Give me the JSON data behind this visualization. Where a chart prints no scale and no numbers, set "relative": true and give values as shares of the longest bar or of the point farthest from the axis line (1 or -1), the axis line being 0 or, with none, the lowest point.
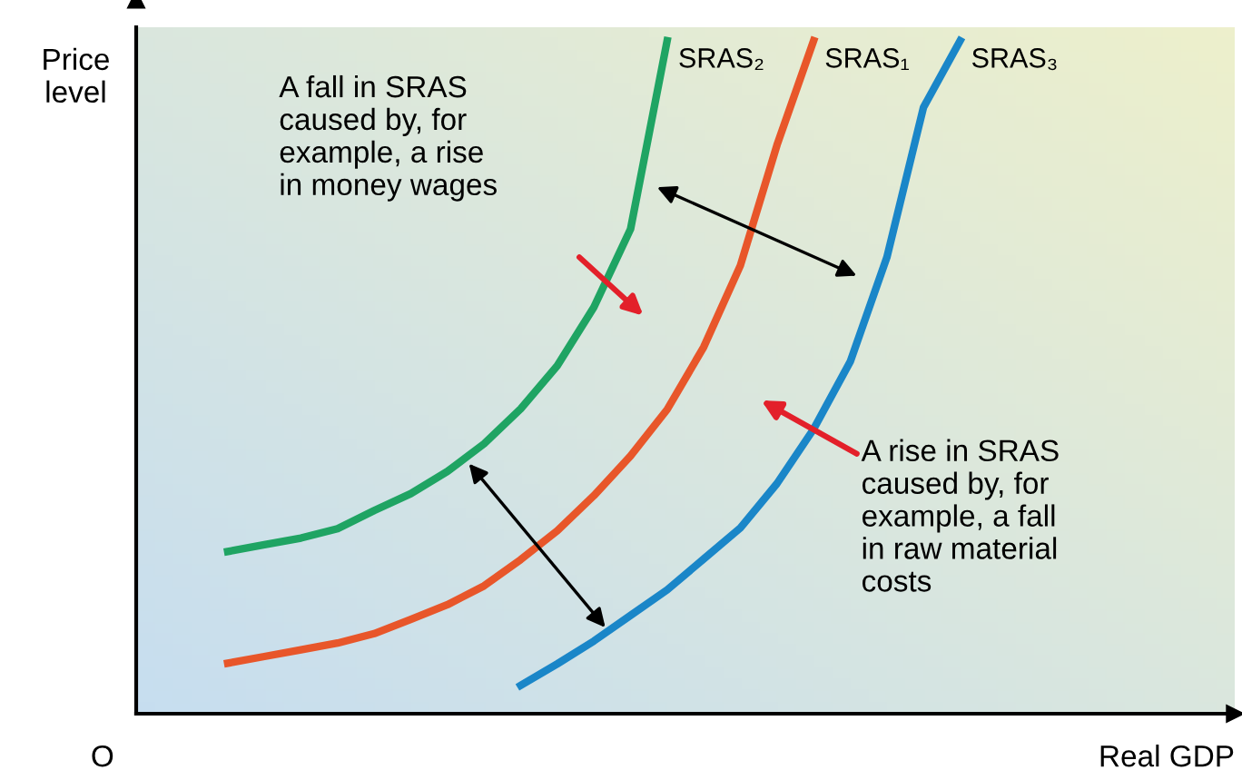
{
  "chart_data": {
    "type": "line",
    "relative": true,
    "xlabel": "Real GDP",
    "ylabel": "Price\nlevel",
    "legend": false,
    "marker": "none",
    "line_style": "solid",
    "categories": [
      null,
      null,
      null,
      null,
      null,
      null,
      null,
      null,
      null,
      null,
      null,
      null,
      null,
      null,
      null,
      null,
      null,
      null,
      null,
      null,
      null,
      null,
      null,
      null,
      null,
      null,
      null,
      null,
      null,
      null
    ],
    "series": [
      {
        "name": "SRAS₂",
        "color": "#1fa463",
        "values": [
          null,
          null,
          0.241,
          0.251,
          0.261,
          0.275,
          0.302,
          0.327,
          0.36,
          0.401,
          0.453,
          0.517,
          0.604,
          0.72,
          1.0,
          null,
          null,
          null,
          null,
          null,
          null,
          null,
          null,
          null,
          null,
          null,
          null,
          null,
          null,
          null
        ]
      },
      {
        "name": "SRAS₁",
        "color": "#e8562a",
        "values": [
          null,
          null,
          0.075,
          0.085,
          0.095,
          0.105,
          0.119,
          0.14,
          0.162,
          0.19,
          0.229,
          0.272,
          0.324,
          0.383,
          0.452,
          0.545,
          0.666,
          0.845,
          1.0,
          null,
          null,
          null,
          null,
          null,
          null,
          null,
          null,
          null,
          null,
          null
        ]
      },
      {
        "name": "SRAS₃",
        "color": "#1a86c8",
        "values": [
          null,
          null,
          null,
          null,
          null,
          null,
          null,
          null,
          null,
          null,
          0.042,
          0.074,
          0.108,
          0.146,
          0.184,
          0.23,
          0.276,
          0.342,
          0.423,
          0.523,
          0.678,
          0.901,
          1.0,
          null,
          null,
          null,
          null,
          null,
          null,
          null
        ]
      }
    ],
    "annotations": [
      "A fall in SRAS\ncaused by, for\nexample, a rise\nin money wages",
      "A rise in SRAS\ncaused by, for\nexample, a fall\nin raw material\ncosts",
      "O"
    ]
  }
}
